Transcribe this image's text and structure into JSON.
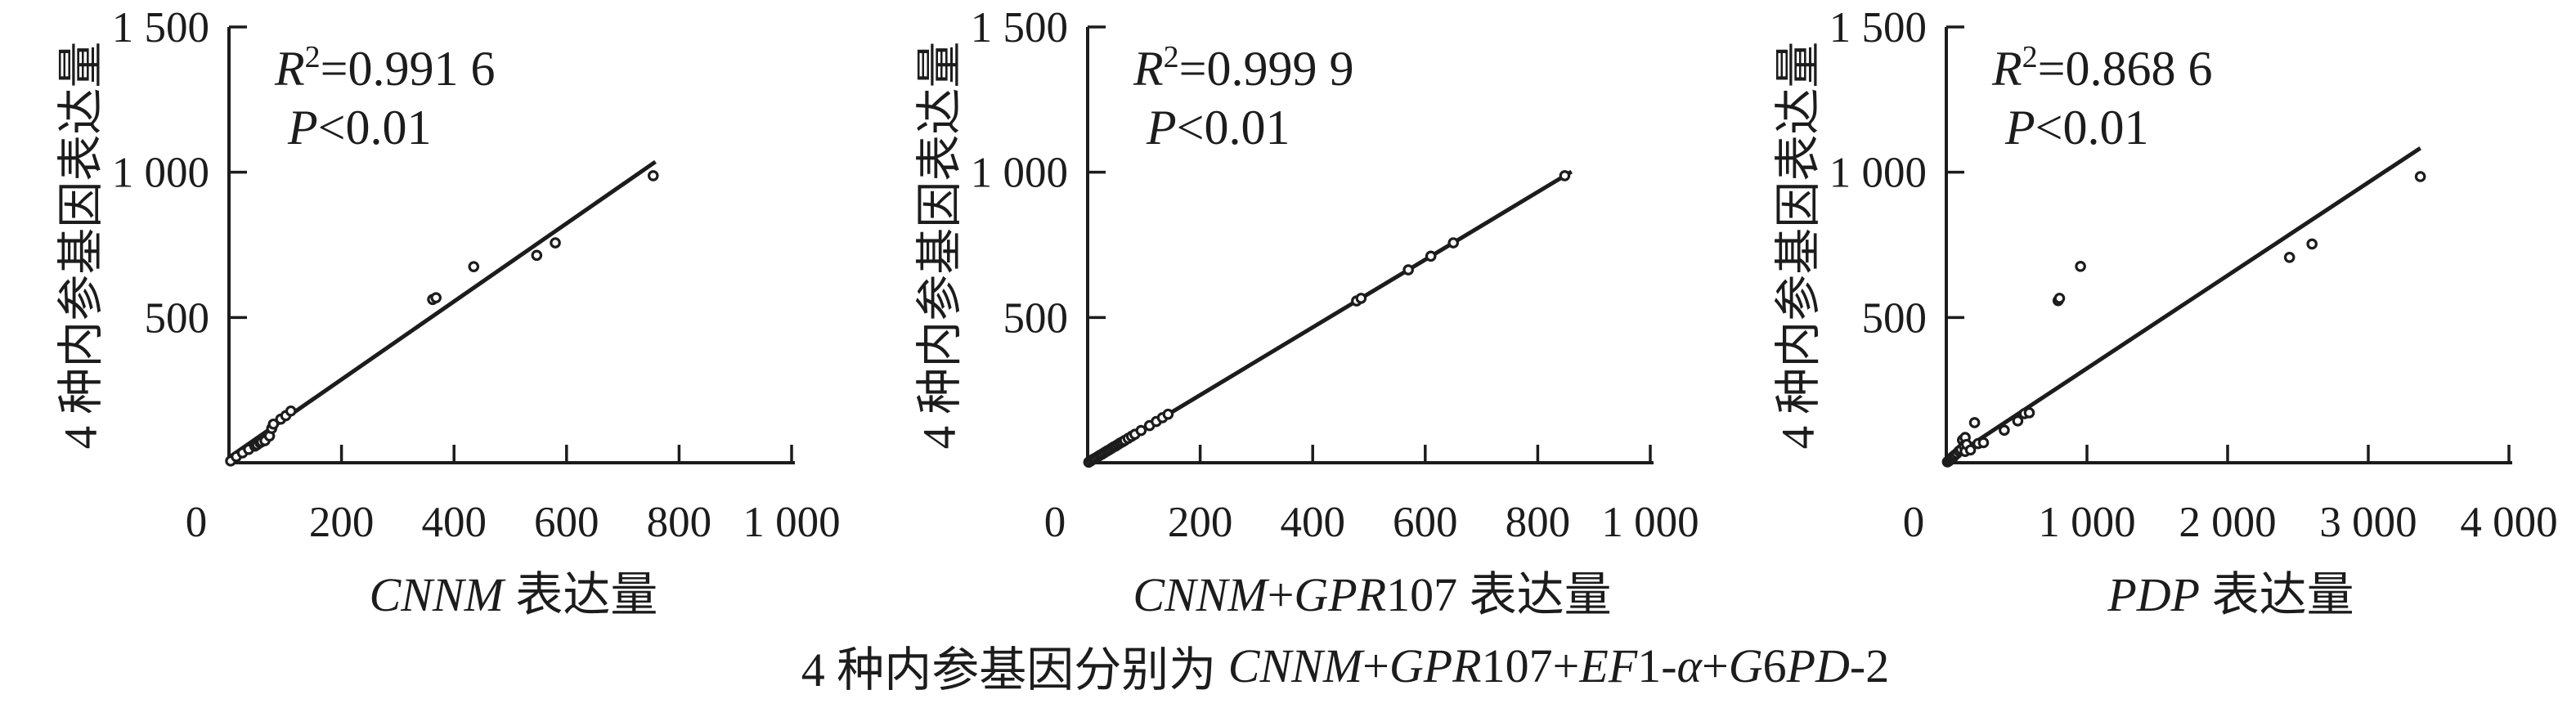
{
  "figure": {
    "ink_color": "#1c1c1c",
    "background_color": "#ffffff"
  },
  "caption": {
    "prefix": "4 种内参基因分别为 ",
    "genes": "CNNM+GPR107+EF1-α+G6PD-2"
  },
  "chart_data": [
    {
      "type": "scatter",
      "panel": "left",
      "xlabel_latin": "CNNM",
      "xlabel_cjk": "表达量",
      "ylabel": "4 种内参基因表达量",
      "xlim": [
        0,
        1000
      ],
      "ylim": [
        0,
        1500
      ],
      "x_ticks": [
        0,
        200,
        400,
        600,
        800,
        1000
      ],
      "x_tick_labels": [
        "0",
        "200",
        "400",
        "600",
        "800",
        "1 000"
      ],
      "y_ticks": [
        500,
        1000,
        1500
      ],
      "y_tick_labels": [
        "500",
        "1 000",
        "1 500"
      ],
      "annotation": {
        "r2_base": "R",
        "r2_sup": "2",
        "r2_eq": "=0.991 6",
        "p_italic": "P",
        "p_rest": "<0.01"
      },
      "legend": "none",
      "grid": false,
      "regression_line": {
        "x0": 0,
        "y0": 18,
        "x1": 758,
        "y1": 1036
      },
      "points": [
        [
          3,
          6
        ],
        [
          13,
          21
        ],
        [
          24,
          34
        ],
        [
          35,
          46
        ],
        [
          46,
          57
        ],
        [
          50,
          62
        ],
        [
          55,
          69
        ],
        [
          58,
          72
        ],
        [
          64,
          76
        ],
        [
          72,
          92
        ],
        [
          76,
          118
        ],
        [
          79,
          133
        ],
        [
          92,
          150
        ],
        [
          101,
          162
        ],
        [
          110,
          178
        ],
        [
          362,
          562
        ],
        [
          368,
          568
        ],
        [
          435,
          675
        ],
        [
          547,
          714
        ],
        [
          580,
          757
        ],
        [
          754,
          988
        ]
      ]
    },
    {
      "type": "scatter",
      "panel": "middle",
      "xlabel_latin": "CNNM+GPR107",
      "xlabel_cjk": "表达量",
      "ylabel": "4 种内参基因表达量",
      "xlim": [
        0,
        1000
      ],
      "ylim": [
        0,
        1500
      ],
      "x_ticks": [
        0,
        200,
        400,
        600,
        800,
        1000
      ],
      "x_tick_labels": [
        "0",
        "200",
        "400",
        "600",
        "800",
        "1 000"
      ],
      "y_ticks": [
        500,
        1000,
        1500
      ],
      "y_tick_labels": [
        "500",
        "1 000",
        "1 500"
      ],
      "annotation": {
        "r2_base": "R",
        "r2_sup": "2",
        "r2_eq": "=0.999 9",
        "p_italic": "P",
        "p_rest": "<0.01"
      },
      "legend": "none",
      "grid": false,
      "regression_line": {
        "x0": 0,
        "y0": 0,
        "x1": 860,
        "y1": 1002
      },
      "points": [
        [
          2,
          2
        ],
        [
          6,
          7
        ],
        [
          10,
          12
        ],
        [
          14,
          16
        ],
        [
          18,
          21
        ],
        [
          22,
          26
        ],
        [
          26,
          30
        ],
        [
          30,
          35
        ],
        [
          34,
          40
        ],
        [
          38,
          44
        ],
        [
          42,
          49
        ],
        [
          46,
          54
        ],
        [
          50,
          58
        ],
        [
          54,
          63
        ],
        [
          58,
          68
        ],
        [
          62,
          72
        ],
        [
          66,
          77
        ],
        [
          72,
          84
        ],
        [
          78,
          91
        ],
        [
          84,
          98
        ],
        [
          95,
          111
        ],
        [
          110,
          128
        ],
        [
          122,
          142
        ],
        [
          133,
          155
        ],
        [
          143,
          167
        ],
        [
          478,
          557
        ],
        [
          486,
          566
        ],
        [
          570,
          664
        ],
        [
          610,
          711
        ],
        [
          650,
          757
        ],
        [
          848,
          988
        ]
      ]
    },
    {
      "type": "scatter",
      "panel": "right",
      "xlabel_latin": "PDP",
      "xlabel_cjk": "表达量",
      "ylabel": "4 种内参基因表达量",
      "xlim": [
        0,
        4000
      ],
      "ylim": [
        0,
        1500
      ],
      "x_ticks": [
        0,
        1000,
        2000,
        3000,
        4000
      ],
      "x_tick_labels": [
        "0",
        "1 000",
        "2 000",
        "3 000",
        "4 000"
      ],
      "y_ticks": [
        500,
        1000,
        1500
      ],
      "y_tick_labels": [
        "500",
        "1 000",
        "1 500"
      ],
      "annotation": {
        "r2_base": "R",
        "r2_sup": "2",
        "r2_eq": "=0.868 6",
        "p_italic": "P",
        "p_rest": "<0.01"
      },
      "legend": "none",
      "grid": false,
      "regression_line": {
        "x0": 0,
        "y0": 5,
        "x1": 3370,
        "y1": 1083
      },
      "points": [
        [
          8,
          3
        ],
        [
          15,
          5
        ],
        [
          20,
          7
        ],
        [
          25,
          10
        ],
        [
          30,
          11
        ],
        [
          35,
          15
        ],
        [
          40,
          16
        ],
        [
          45,
          20
        ],
        [
          50,
          20
        ],
        [
          60,
          26
        ],
        [
          75,
          32
        ],
        [
          90,
          40
        ],
        [
          105,
          46
        ],
        [
          115,
          78
        ],
        [
          125,
          58
        ],
        [
          134,
          39
        ],
        [
          134,
          87
        ],
        [
          144,
          63
        ],
        [
          172,
          44
        ],
        [
          201,
          138
        ],
        [
          226,
          66
        ],
        [
          264,
          69
        ],
        [
          412,
          112
        ],
        [
          508,
          144
        ],
        [
          556,
          169
        ],
        [
          590,
          172
        ],
        [
          795,
          558
        ],
        [
          805,
          566
        ],
        [
          954,
          676
        ],
        [
          2440,
          707
        ],
        [
          2600,
          753
        ],
        [
          3370,
          985
        ]
      ]
    }
  ]
}
